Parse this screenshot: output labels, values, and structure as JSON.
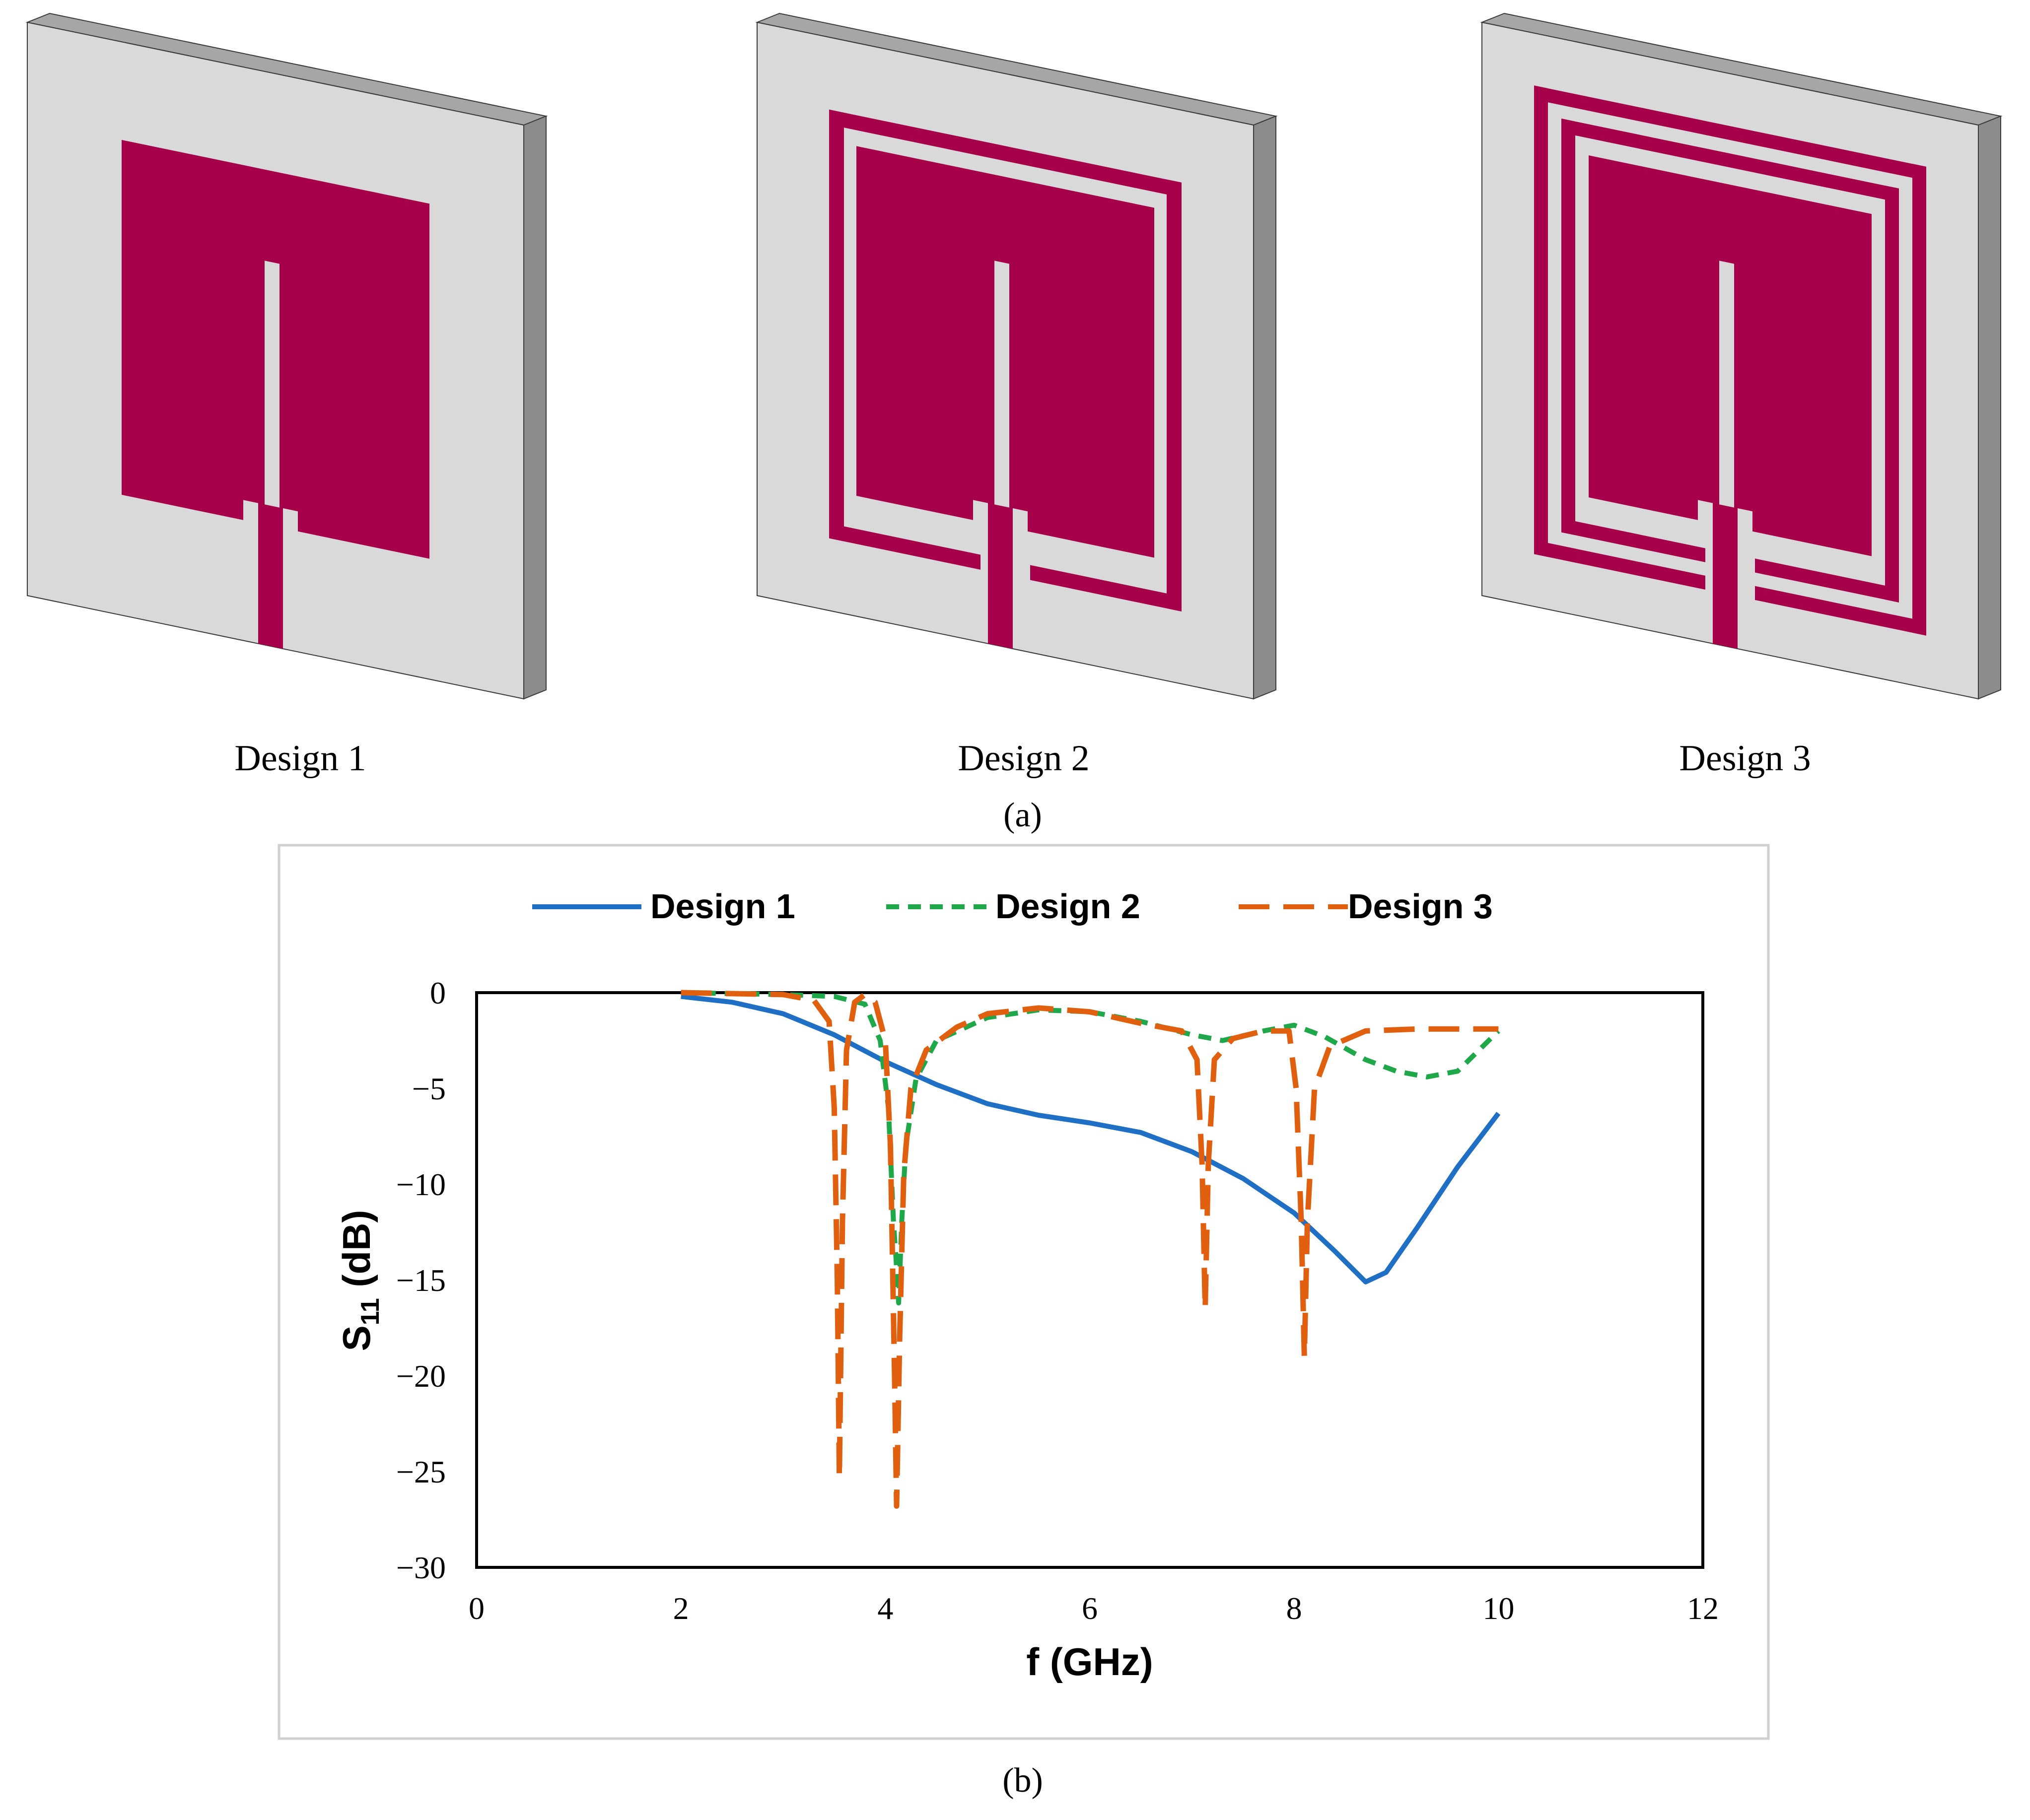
{
  "figure": {
    "designs": [
      {
        "label": "Design 1",
        "rings": 0
      },
      {
        "label": "Design 2",
        "rings": 1
      },
      {
        "label": "Design 3",
        "rings": 2
      }
    ],
    "label_a": "(a)",
    "label_b": "(b)",
    "colors": {
      "patch": "#A6004A",
      "substrate_face": "#D9D9D9",
      "substrate_top": "#A6A6A6",
      "substrate_side": "#8C8C8C",
      "outline": "#3A3A3A"
    }
  },
  "chart_data": {
    "type": "line",
    "title": "",
    "xlabel": "f (GHz)",
    "ylabel_main": "S",
    "ylabel_sub": "11",
    "ylabel_unit": " (dB)",
    "xlim": [
      0,
      12
    ],
    "ylim": [
      -30,
      0
    ],
    "xticks": [
      0,
      2,
      4,
      6,
      8,
      10,
      12
    ],
    "yticks": [
      0,
      -5,
      -10,
      -15,
      -20,
      -25,
      -30
    ],
    "ytick_labels": [
      "0",
      "−5",
      "−10",
      "−15",
      "−20",
      "−25",
      "−30"
    ],
    "grid": false,
    "legend_position": "top",
    "series": [
      {
        "name": "Design 1",
        "color": "#1F6FC4",
        "style": "solid",
        "points": [
          [
            2.0,
            -0.2
          ],
          [
            2.5,
            -0.5
          ],
          [
            3.0,
            -1.1
          ],
          [
            3.5,
            -2.2
          ],
          [
            4.0,
            -3.6
          ],
          [
            4.5,
            -4.8
          ],
          [
            5.0,
            -5.8
          ],
          [
            5.5,
            -6.4
          ],
          [
            6.0,
            -6.8
          ],
          [
            6.5,
            -7.3
          ],
          [
            7.0,
            -8.3
          ],
          [
            7.5,
            -9.7
          ],
          [
            8.0,
            -11.5
          ],
          [
            8.4,
            -13.5
          ],
          [
            8.7,
            -15.1
          ],
          [
            8.9,
            -14.6
          ],
          [
            9.2,
            -12.3
          ],
          [
            9.6,
            -9.1
          ],
          [
            10.0,
            -6.3
          ]
        ]
      },
      {
        "name": "Design 2",
        "color": "#1FA84A",
        "style": "short-dash",
        "points": [
          [
            2.0,
            0.0
          ],
          [
            3.0,
            -0.1
          ],
          [
            3.5,
            -0.2
          ],
          [
            3.8,
            -0.6
          ],
          [
            3.95,
            -2.5
          ],
          [
            4.03,
            -6.0
          ],
          [
            4.08,
            -12.0
          ],
          [
            4.1,
            -13.5
          ],
          [
            4.13,
            -16.2
          ],
          [
            4.16,
            -12.0
          ],
          [
            4.2,
            -8.0
          ],
          [
            4.3,
            -4.5
          ],
          [
            4.5,
            -2.5
          ],
          [
            5.0,
            -1.3
          ],
          [
            5.5,
            -0.9
          ],
          [
            6.0,
            -1.0
          ],
          [
            6.5,
            -1.5
          ],
          [
            7.0,
            -2.2
          ],
          [
            7.3,
            -2.5
          ],
          [
            7.7,
            -2.0
          ],
          [
            8.0,
            -1.7
          ],
          [
            8.3,
            -2.3
          ],
          [
            8.7,
            -3.5
          ],
          [
            9.0,
            -4.1
          ],
          [
            9.3,
            -4.4
          ],
          [
            9.6,
            -4.1
          ],
          [
            10.0,
            -2.0
          ]
        ]
      },
      {
        "name": "Design 3",
        "color": "#E06010",
        "style": "long-dash",
        "points": [
          [
            2.0,
            0.0
          ],
          [
            3.0,
            -0.1
          ],
          [
            3.3,
            -0.4
          ],
          [
            3.45,
            -1.5
          ],
          [
            3.5,
            -6.0
          ],
          [
            3.53,
            -15.0
          ],
          [
            3.55,
            -25.3
          ],
          [
            3.58,
            -12.0
          ],
          [
            3.62,
            -3.0
          ],
          [
            3.7,
            -0.5
          ],
          [
            3.8,
            -0.1
          ],
          [
            3.9,
            -0.5
          ],
          [
            4.0,
            -2.5
          ],
          [
            4.05,
            -8.0
          ],
          [
            4.09,
            -20.0
          ],
          [
            4.11,
            -26.8
          ],
          [
            4.14,
            -18.0
          ],
          [
            4.18,
            -9.5
          ],
          [
            4.25,
            -5.0
          ],
          [
            4.4,
            -3.0
          ],
          [
            4.7,
            -1.8
          ],
          [
            5.0,
            -1.1
          ],
          [
            5.5,
            -0.8
          ],
          [
            6.0,
            -1.0
          ],
          [
            6.5,
            -1.6
          ],
          [
            6.9,
            -2.0
          ],
          [
            7.05,
            -3.5
          ],
          [
            7.1,
            -9.0
          ],
          [
            7.13,
            -16.5
          ],
          [
            7.16,
            -9.0
          ],
          [
            7.22,
            -3.5
          ],
          [
            7.4,
            -2.4
          ],
          [
            7.7,
            -2.0
          ],
          [
            7.95,
            -2.0
          ],
          [
            8.02,
            -5.0
          ],
          [
            8.07,
            -12.0
          ],
          [
            8.1,
            -19.0
          ],
          [
            8.13,
            -12.0
          ],
          [
            8.2,
            -5.0
          ],
          [
            8.35,
            -2.8
          ],
          [
            8.7,
            -2.0
          ],
          [
            9.2,
            -1.9
          ],
          [
            10.0,
            -1.9
          ]
        ]
      }
    ]
  }
}
